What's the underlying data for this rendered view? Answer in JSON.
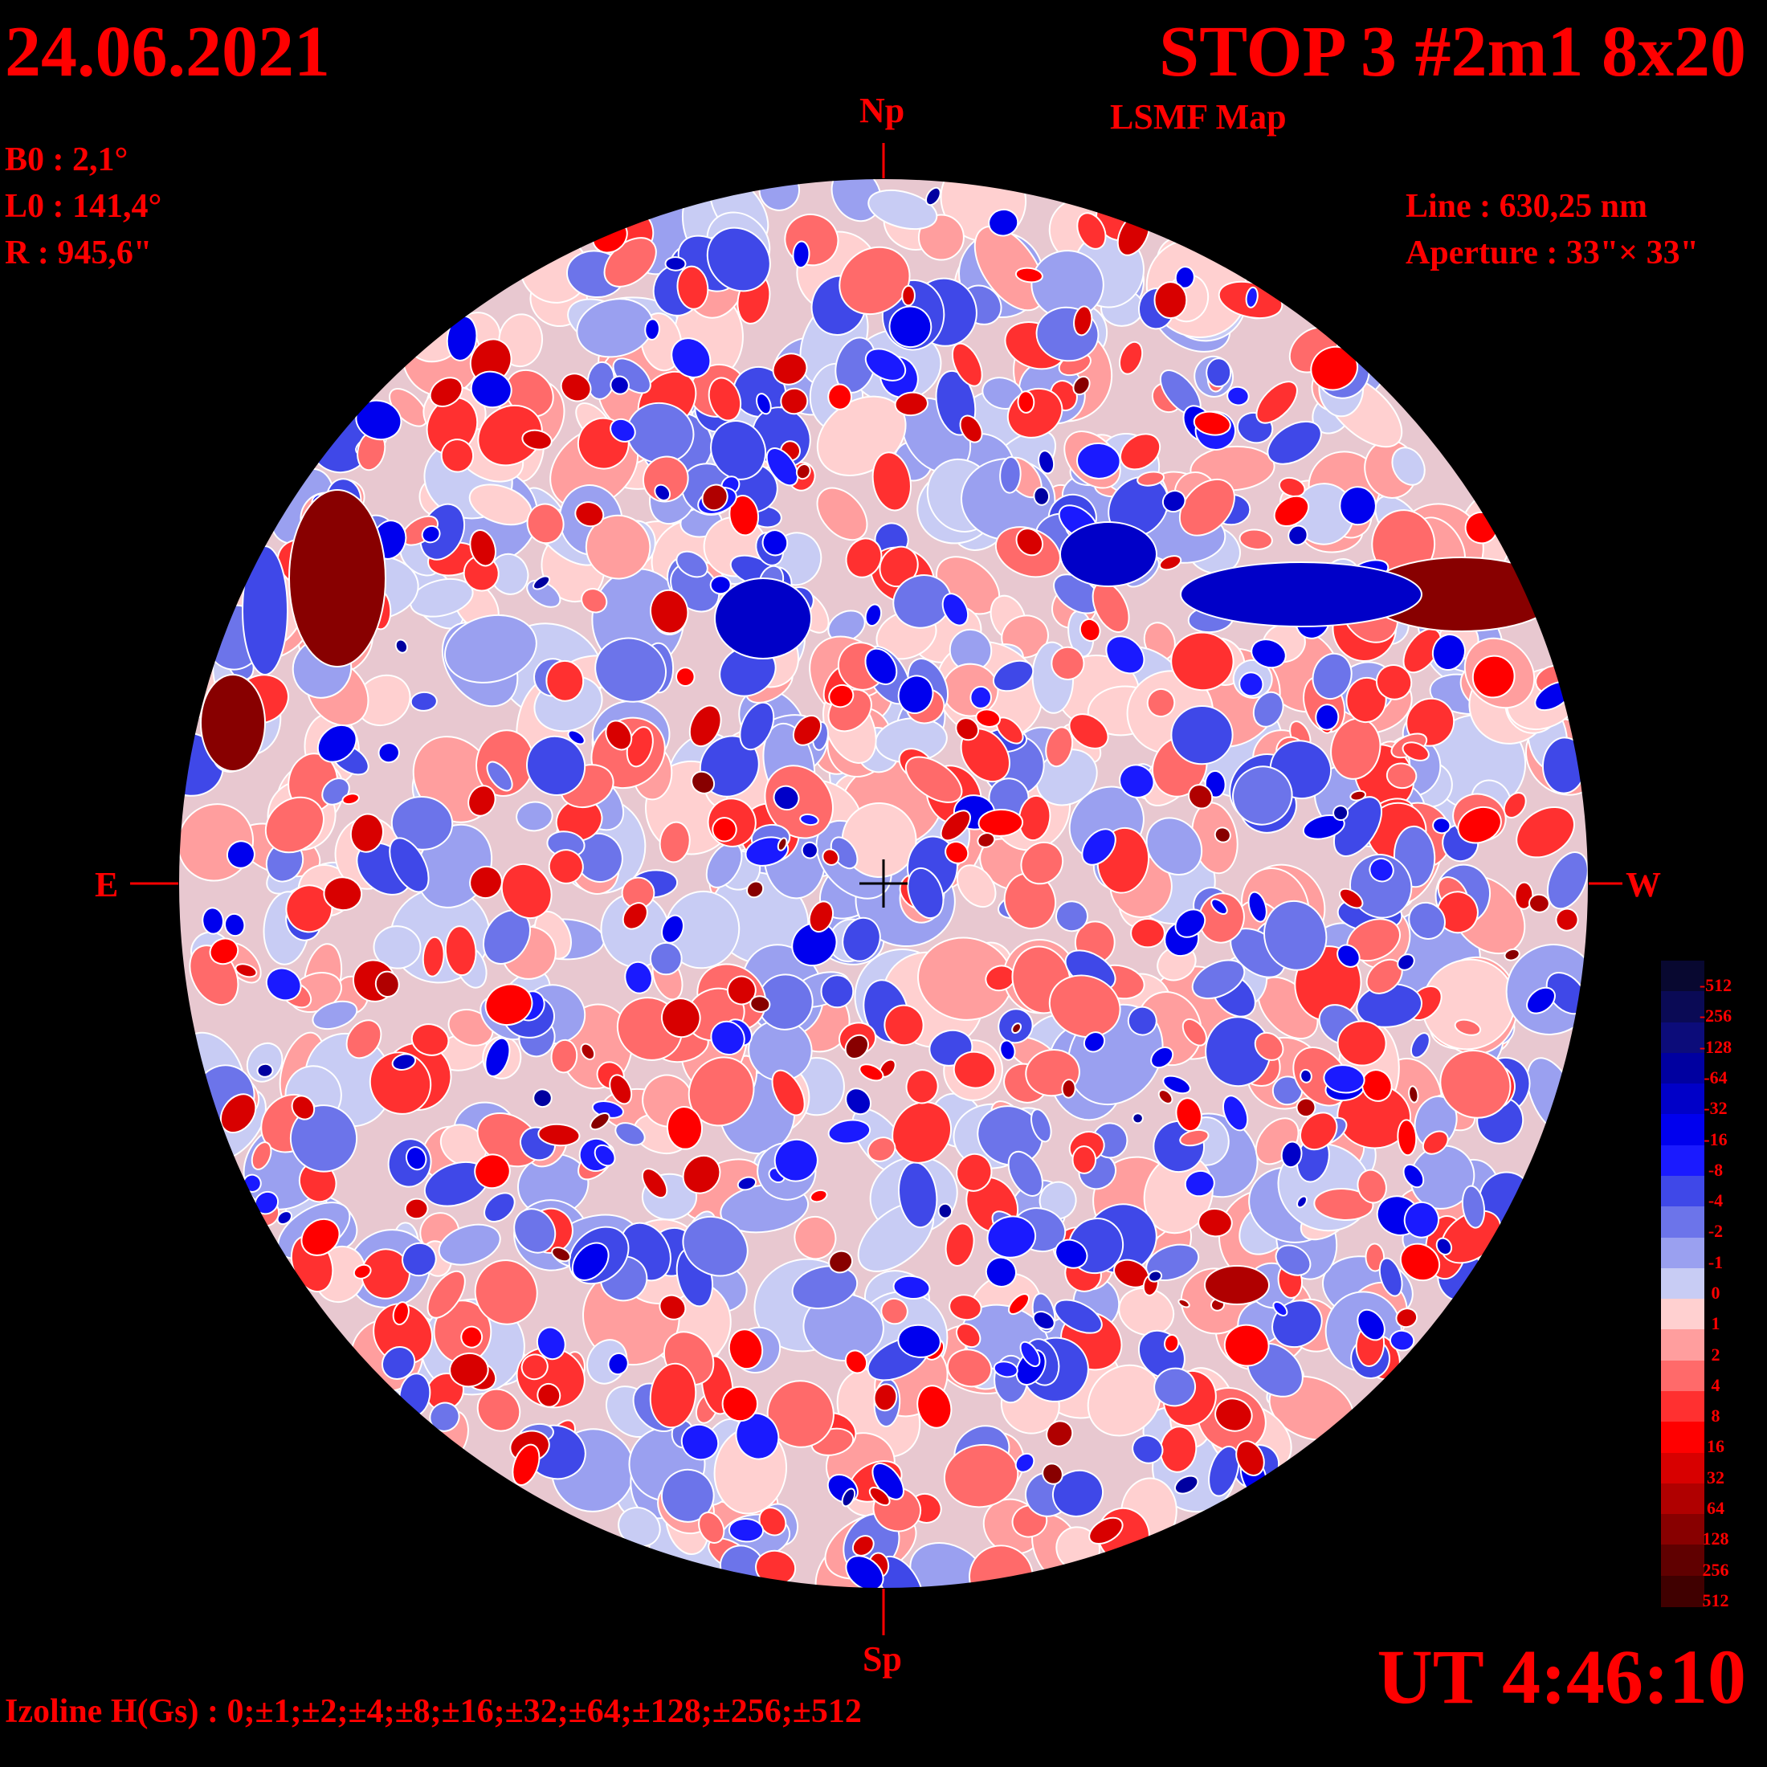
{
  "header": {
    "date": "24.06.2021",
    "title": "STOP 3 #2m1 8x20",
    "subtitle": "LSMF  Map"
  },
  "params": {
    "b0": "B0 : 2,1°",
    "l0": "L0 : 141,4°",
    "radius": "R  : 945,6\"",
    "line": "Line :  630,25 nm",
    "aperture": "Aperture : 33\"× 33\""
  },
  "directions": {
    "north": "Np",
    "south": "Sp",
    "east": "E",
    "west": "W"
  },
  "time": "UT 4:46:10",
  "izoline": "Izoline H(Gs) : 0;±1;±2;±4;±8;±16;±32;±64;±128;±256;±512",
  "colorbar": {
    "levels": [
      "-512",
      "-256",
      "-128",
      "-64",
      "-32",
      "-16",
      "-8",
      "-4",
      "-2",
      "-1",
      "0",
      "1",
      "2",
      "4",
      "8",
      "16",
      "32",
      "64",
      "128",
      "256",
      "512"
    ],
    "colors": [
      "#080830",
      "#0a0a55",
      "#0c0c7a",
      "#0000a0",
      "#0000c8",
      "#0000ee",
      "#1a1aff",
      "#3f48e8",
      "#6c74ea",
      "#9aa0f0",
      "#c8ccf4",
      "#ffd0d0",
      "#ff9e9e",
      "#ff6a6a",
      "#ff3030",
      "#ff0000",
      "#d80000",
      "#b00000",
      "#880000",
      "#600000",
      "#400000"
    ]
  },
  "legend_colors": {
    "text": "#ff0000",
    "positive": "#ff0000",
    "negative": "#0000ff",
    "neutral": "#ffffff"
  }
}
